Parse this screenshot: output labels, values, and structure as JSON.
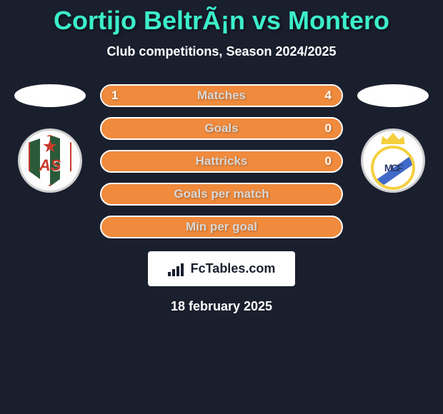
{
  "title": "Cortijo BeltrÃ¡n vs Montero",
  "subtitle": "Club competitions, Season 2024/2025",
  "colors": {
    "background": "#1a1f2e",
    "accent_bar": "#f08a3c",
    "title_color": "#3cefcb",
    "border_color": "#ffffff",
    "dark_bar": "#2a3442"
  },
  "team_left": {
    "name": "AS",
    "badge_primary": "#2a5a3a",
    "badge_accent": "#c83a2a"
  },
  "team_right": {
    "name": "Real Madrid",
    "badge_primary": "#f4d03f",
    "badge_accent": "#4169c8"
  },
  "stats": [
    {
      "label": "Matches",
      "left_value": "1",
      "right_value": "4",
      "left_pct": 20,
      "right_pct": 80,
      "full_orange": false
    },
    {
      "label": "Goals",
      "left_value": "",
      "right_value": "0",
      "left_pct": 0,
      "right_pct": 0,
      "full_orange": true
    },
    {
      "label": "Hattricks",
      "left_value": "",
      "right_value": "0",
      "left_pct": 0,
      "right_pct": 0,
      "full_orange": true
    },
    {
      "label": "Goals per match",
      "left_value": "",
      "right_value": "",
      "left_pct": 0,
      "right_pct": 0,
      "full_orange": true
    },
    {
      "label": "Min per goal",
      "left_value": "",
      "right_value": "",
      "left_pct": 0,
      "right_pct": 0,
      "full_orange": true
    }
  ],
  "footer": {
    "brand": "FcTables.com",
    "date": "18 february 2025"
  }
}
